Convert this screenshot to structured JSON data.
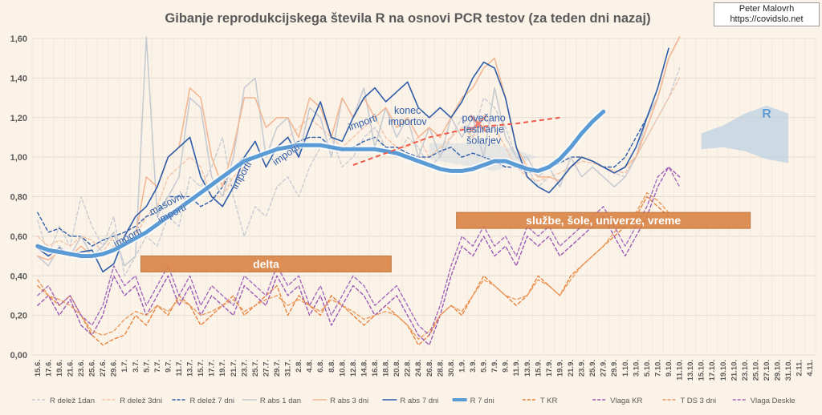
{
  "credit": {
    "author": "Peter Malovrh",
    "site": "https://covidslo.net"
  },
  "chart_data": {
    "type": "line",
    "title": "Gibanje reprodukcijskega števila R na osnovi PCR testov (za teden dni nazaj)",
    "xlabel": "",
    "ylabel": "",
    "ylim": [
      0,
      1.6
    ],
    "yticks": [
      "0,00",
      "0,20",
      "0,40",
      "0,60",
      "0,80",
      "1,00",
      "1,20",
      "1,40",
      "1,60"
    ],
    "xticks": [
      "15.6.",
      "17.6.",
      "19.6.",
      "21.6.",
      "23.6.",
      "25.6.",
      "27.6.",
      "29.6.",
      "1.7.",
      "3.7.",
      "5.7.",
      "7.7.",
      "9.7.",
      "11.7.",
      "13.7.",
      "15.7.",
      "17.7.",
      "19.7.",
      "21.7.",
      "23.7.",
      "25.7.",
      "27.7.",
      "29.7.",
      "31.7.",
      "2.8.",
      "4.8.",
      "6.8.",
      "8.8.",
      "10.8.",
      "12.8.",
      "14.8.",
      "16.8.",
      "18.8.",
      "20.8.",
      "22.8.",
      "24.8.",
      "26.8.",
      "28.8.",
      "30.8.",
      "1.9.",
      "3.9.",
      "5.9.",
      "7.9.",
      "9.9.",
      "11.9.",
      "13.9.",
      "15.9.",
      "17.9.",
      "19.9.",
      "21.9.",
      "23.9.",
      "25.9.",
      "27.9.",
      "29.9.",
      "1.10.",
      "3.10.",
      "5.10.",
      "7.10.",
      "9.10.",
      "11.10.",
      "13.10.",
      "15.10.",
      "17.10.",
      "19.10.",
      "21.10.",
      "23.10.",
      "25.10.",
      "27.10.",
      "29.10.",
      "31.10.",
      "2.11.",
      "4.11."
    ],
    "grid": true,
    "legend_position": "bottom",
    "series": [
      {
        "name": "R delež 1dan",
        "color": "#c9ccd2",
        "style": "dashed",
        "values": [
          0.68,
          0.5,
          0.65,
          0.55,
          0.8,
          0.65,
          0.55,
          0.7,
          0.4,
          0.5,
          0.6,
          0.55,
          0.7,
          0.65,
          0.9,
          0.85,
          0.95,
          1.1,
          0.8,
          0.6,
          0.75,
          0.7,
          0.85,
          0.9,
          0.8,
          0.95,
          1.05,
          1.1,
          0.95,
          1.0,
          1.1,
          1.15,
          1.05,
          1.0,
          1.1,
          1.05,
          0.95,
          1.0,
          1.1,
          1.2,
          1.1,
          1.3,
          1.25,
          1.15,
          1.0,
          0.95,
          0.85,
          0.9,
          0.88,
          0.95,
          1.0,
          0.98,
          0.95,
          0.92,
          0.9,
          1.0,
          1.1,
          1.2,
          1.3,
          1.45
        ]
      },
      {
        "name": "R delež 3dni",
        "color": "#f4c3a6",
        "style": "dashed",
        "values": [
          0.6,
          0.55,
          0.58,
          0.55,
          0.6,
          0.58,
          0.52,
          0.6,
          0.55,
          0.6,
          0.7,
          0.75,
          0.9,
          0.95,
          1.0,
          0.95,
          0.8,
          0.8,
          0.9,
          0.95,
          1.0,
          1.0,
          1.05,
          1.1,
          1.15,
          1.2,
          1.15,
          1.1,
          1.05,
          1.1,
          1.15,
          1.2,
          1.1,
          1.05,
          1.05,
          1.1,
          1.0,
          1.05,
          1.1,
          1.15,
          1.1,
          1.2,
          1.15,
          1.05,
          0.95,
          0.9,
          0.88,
          0.9,
          0.92,
          0.95,
          0.98,
          0.97,
          0.95,
          0.93,
          0.92,
          1.0,
          1.1,
          1.2,
          1.3,
          1.4
        ]
      },
      {
        "name": "R delež 7 dni",
        "color": "#2e5ca8",
        "style": "dashed",
        "values": [
          0.72,
          0.62,
          0.64,
          0.6,
          0.6,
          0.55,
          0.58,
          0.6,
          0.62,
          0.65,
          0.7,
          0.72,
          0.8,
          0.8,
          0.8,
          0.75,
          0.78,
          0.85,
          0.95,
          1.0,
          1.0,
          1.02,
          1.05,
          1.05,
          1.08,
          1.1,
          1.1,
          1.05,
          1.03,
          1.05,
          1.08,
          1.1,
          1.05,
          1.05,
          1.02,
          1.0,
          1.0,
          1.03,
          1.05,
          1.0,
          1.02,
          1.0,
          0.98,
          0.95,
          0.95,
          0.92,
          0.93,
          0.95,
          0.97,
          1.0,
          1.0,
          0.98,
          0.95,
          0.95,
          1.0,
          1.1,
          1.2,
          1.3
        ]
      },
      {
        "name": "R abs 1 dan",
        "color": "#c7cbd2",
        "style": "solid",
        "values": [
          0.5,
          0.45,
          0.55,
          0.5,
          0.6,
          0.5,
          0.55,
          0.62,
          0.45,
          0.5,
          1.8,
          0.7,
          0.8,
          0.9,
          1.3,
          1.25,
          0.9,
          0.8,
          1.0,
          1.35,
          1.4,
          1.0,
          1.15,
          1.2,
          1.0,
          1.25,
          1.2,
          1.0,
          1.3,
          1.2,
          1.35,
          1.05,
          1.25,
          1.1,
          1.2,
          1.0,
          1.15,
          1.0,
          1.2,
          1.1,
          1.2,
          1.0,
          1.35,
          1.1,
          1.0,
          1.0,
          0.9,
          0.95,
          0.85,
          1.0,
          0.9,
          0.95,
          0.9,
          0.85,
          0.9,
          1.0,
          1.2,
          1.3,
          1.5,
          1.7
        ]
      },
      {
        "name": "R abs 3 dni",
        "color": "#f3b794",
        "style": "solid",
        "values": [
          0.5,
          0.48,
          0.52,
          0.5,
          0.55,
          0.5,
          0.5,
          0.55,
          0.55,
          0.6,
          0.9,
          0.85,
          1.0,
          1.05,
          1.35,
          1.3,
          1.0,
          0.85,
          1.05,
          1.3,
          1.3,
          1.15,
          1.2,
          1.2,
          1.1,
          1.3,
          1.25,
          1.1,
          1.3,
          1.2,
          1.3,
          1.2,
          1.25,
          1.15,
          1.2,
          1.1,
          1.15,
          1.1,
          1.2,
          1.3,
          1.35,
          1.45,
          1.5,
          1.3,
          1.05,
          0.95,
          0.9,
          0.9,
          0.88,
          0.95,
          1.0,
          0.98,
          0.95,
          0.92,
          0.95,
          1.0,
          1.15,
          1.3,
          1.5,
          1.7
        ]
      },
      {
        "name": "R abs 7 dni",
        "color": "#2e5ca8",
        "style": "solid",
        "values": [
          0.54,
          0.5,
          0.54,
          0.5,
          0.52,
          0.53,
          0.42,
          0.46,
          0.6,
          0.7,
          0.75,
          0.85,
          1.0,
          1.05,
          1.1,
          0.9,
          0.8,
          0.75,
          0.85,
          1.0,
          1.08,
          0.95,
          1.05,
          1.1,
          1.0,
          1.15,
          1.28,
          1.1,
          1.08,
          1.2,
          1.3,
          1.35,
          1.28,
          1.33,
          1.38,
          1.25,
          1.2,
          1.25,
          1.2,
          1.28,
          1.4,
          1.48,
          1.45,
          1.3,
          1.05,
          0.9,
          0.85,
          0.82,
          0.88,
          0.95,
          1.0,
          0.98,
          0.95,
          0.92,
          0.95,
          1.05,
          1.2,
          1.35,
          1.55
        ]
      },
      {
        "name": "R 7 dni",
        "color": "#5b9bd5",
        "style": "thick",
        "values": [
          0.55,
          0.53,
          0.52,
          0.51,
          0.5,
          0.5,
          0.51,
          0.53,
          0.56,
          0.59,
          0.62,
          0.66,
          0.7,
          0.74,
          0.78,
          0.82,
          0.86,
          0.9,
          0.94,
          0.98,
          1.0,
          1.02,
          1.04,
          1.05,
          1.06,
          1.06,
          1.06,
          1.05,
          1.04,
          1.04,
          1.04,
          1.04,
          1.03,
          1.02,
          1.0,
          0.98,
          0.96,
          0.94,
          0.93,
          0.93,
          0.94,
          0.96,
          0.98,
          0.98,
          0.96,
          0.94,
          0.93,
          0.95,
          0.99,
          1.05,
          1.12,
          1.18,
          1.23
        ]
      },
      {
        "name": "T KR",
        "color": "#e8823c",
        "style": "dashed",
        "values": [
          0.35,
          0.3,
          0.25,
          0.3,
          0.2,
          0.1,
          0.05,
          0.08,
          0.1,
          0.2,
          0.15,
          0.25,
          0.2,
          0.3,
          0.25,
          0.15,
          0.2,
          0.25,
          0.3,
          0.2,
          0.25,
          0.3,
          0.35,
          0.2,
          0.3,
          0.25,
          0.2,
          0.3,
          0.25,
          0.2,
          0.15,
          0.2,
          0.25,
          0.2,
          0.15,
          0.05,
          0.1,
          0.2,
          0.25,
          0.2,
          0.3,
          0.4,
          0.35,
          0.3,
          0.25,
          0.3,
          0.4,
          0.35,
          0.3,
          0.4,
          0.45,
          0.5,
          0.55,
          0.6,
          0.65,
          0.7,
          0.8,
          0.75,
          0.7
        ]
      },
      {
        "name": "Vlaga KR",
        "color": "#9b59b6",
        "style": "dashed",
        "values": [
          0.25,
          0.3,
          0.2,
          0.28,
          0.15,
          0.1,
          0.2,
          0.4,
          0.3,
          0.35,
          0.2,
          0.3,
          0.4,
          0.25,
          0.35,
          0.2,
          0.3,
          0.25,
          0.2,
          0.35,
          0.3,
          0.25,
          0.4,
          0.3,
          0.35,
          0.2,
          0.3,
          0.15,
          0.25,
          0.35,
          0.3,
          0.2,
          0.25,
          0.3,
          0.2,
          0.1,
          0.05,
          0.2,
          0.4,
          0.55,
          0.5,
          0.6,
          0.5,
          0.55,
          0.45,
          0.6,
          0.55,
          0.6,
          0.5,
          0.55,
          0.6,
          0.65,
          0.7,
          0.6,
          0.5,
          0.6,
          0.7,
          0.85,
          0.95,
          0.9
        ]
      },
      {
        "name": "T DS 3 dni",
        "color": "#ea9a5e",
        "style": "dashed",
        "values": [
          0.38,
          0.3,
          0.28,
          0.25,
          0.2,
          0.12,
          0.1,
          0.12,
          0.18,
          0.22,
          0.2,
          0.25,
          0.22,
          0.28,
          0.25,
          0.2,
          0.22,
          0.25,
          0.28,
          0.22,
          0.25,
          0.28,
          0.3,
          0.25,
          0.28,
          0.25,
          0.22,
          0.28,
          0.25,
          0.22,
          0.18,
          0.2,
          0.22,
          0.2,
          0.15,
          0.08,
          0.12,
          0.2,
          0.25,
          0.22,
          0.3,
          0.38,
          0.35,
          0.3,
          0.28,
          0.3,
          0.38,
          0.35,
          0.3,
          0.38,
          0.45,
          0.5,
          0.55,
          0.62,
          0.68,
          0.72,
          0.82,
          0.78,
          0.72
        ]
      },
      {
        "name": "Vlaga Deskle",
        "color": "#a569bd",
        "style": "dashed",
        "values": [
          0.3,
          0.35,
          0.25,
          0.3,
          0.2,
          0.15,
          0.25,
          0.45,
          0.35,
          0.4,
          0.25,
          0.35,
          0.45,
          0.3,
          0.4,
          0.25,
          0.35,
          0.3,
          0.25,
          0.4,
          0.35,
          0.3,
          0.45,
          0.35,
          0.4,
          0.25,
          0.35,
          0.2,
          0.3,
          0.4,
          0.35,
          0.25,
          0.3,
          0.35,
          0.25,
          0.15,
          0.1,
          0.25,
          0.45,
          0.6,
          0.55,
          0.65,
          0.55,
          0.6,
          0.5,
          0.65,
          0.6,
          0.65,
          0.55,
          0.6,
          0.65,
          0.7,
          0.75,
          0.65,
          0.55,
          0.65,
          0.75,
          0.9,
          0.95,
          0.85
        ]
      }
    ],
    "annotations": [
      {
        "text": "importi",
        "x": "3.7.",
        "y": 0.58
      },
      {
        "text": "masovni importi",
        "x": "9.7.",
        "y": 0.75
      },
      {
        "text": "importi",
        "x": "23.7.",
        "y": 0.9
      },
      {
        "text": "importi",
        "x": "31.7.",
        "y": 1.0
      },
      {
        "text": "importi",
        "x": "14.8.",
        "y": 1.16
      },
      {
        "text": "konec importov",
        "x": "22.8.",
        "y": 1.22
      },
      {
        "text": "povečano testiranje šolarjev",
        "x": "5.9.",
        "y": 1.18
      },
      {
        "text": "R",
        "x": "27.10.",
        "y": 1.2
      },
      {
        "text": "delta",
        "x": "3.7.",
        "y": 0.46,
        "type": "bar-label"
      },
      {
        "text": "službe, šole, univerze, vreme",
        "x": "29.8.",
        "y": 0.68,
        "type": "bar-label"
      }
    ]
  }
}
